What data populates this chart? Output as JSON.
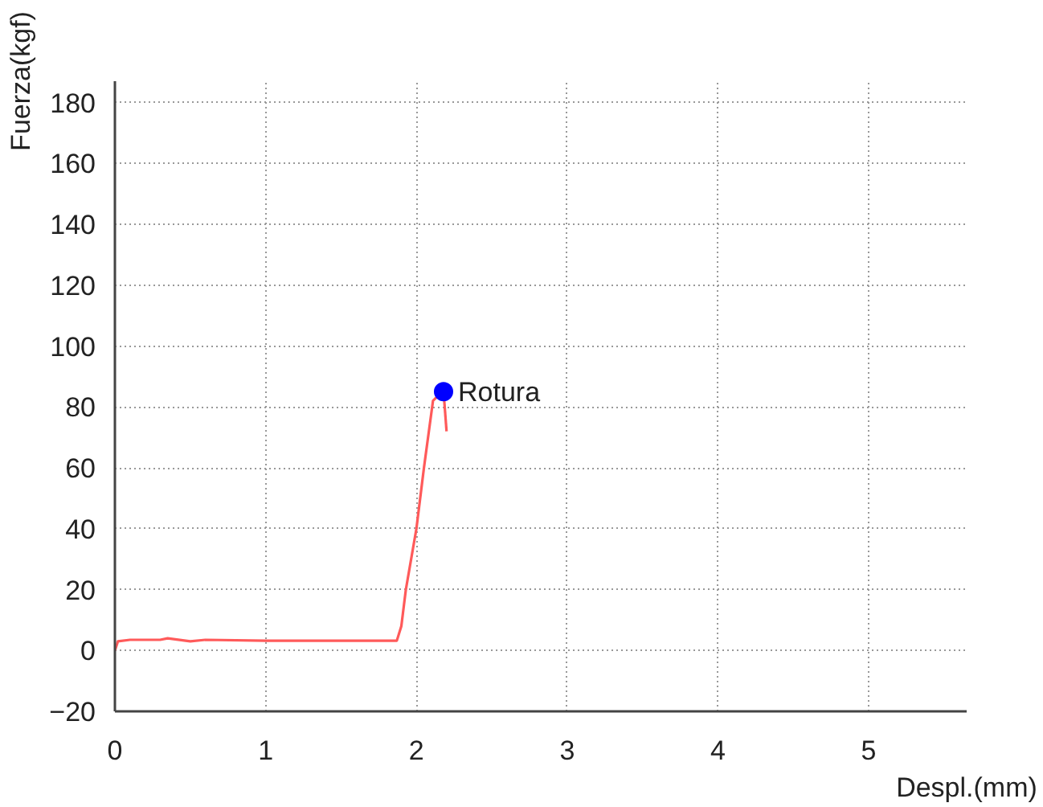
{
  "chart_data": {
    "type": "line",
    "xlabel": "Despl.(mm)",
    "ylabel": "Fuerza(kgf)",
    "xlim": [
      0,
      5.65
    ],
    "ylim": [
      -20,
      187
    ],
    "xticks": [
      0,
      1,
      2,
      3,
      4,
      5
    ],
    "yticks": [
      -20,
      0,
      20,
      40,
      60,
      80,
      100,
      120,
      140,
      160,
      180
    ],
    "grid": true,
    "line_style": "solid",
    "series": [
      {
        "color": "#ff5a5a",
        "x": [
          0,
          0.02,
          0.1,
          0.3,
          0.35,
          0.5,
          0.6,
          1.0,
          1.5,
          1.87,
          1.9,
          1.93,
          2.0,
          2.05,
          2.11,
          2.15,
          2.18
        ],
        "values": [
          0,
          3,
          3.5,
          3.5,
          4,
          3,
          3.5,
          3.2,
          3.2,
          3.2,
          8,
          20,
          40,
          60,
          82,
          84,
          85
        ]
      },
      {
        "color": "#ff5a5a",
        "x": [
          2.18,
          2.2
        ],
        "values": [
          85,
          72
        ]
      },
      {
        "type": "scatter",
        "color": "#0000ff",
        "marker": "circle",
        "x": [
          2.18
        ],
        "values": [
          85
        ]
      }
    ],
    "annotations": [
      {
        "text": "Rotura",
        "x": 2.18,
        "y": 85
      }
    ]
  }
}
